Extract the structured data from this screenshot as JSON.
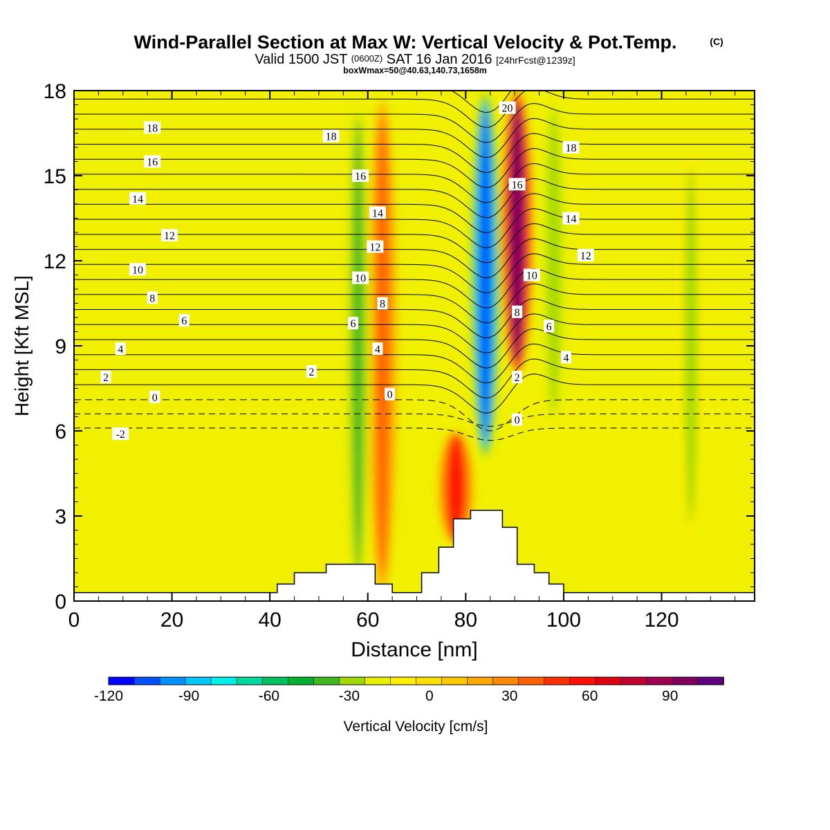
{
  "chart_data": {
    "type": "heatmap",
    "title": "Wind-Parallel Section at Max W: Vertical Velocity & Pot.Temp.",
    "title_mark": "(C)",
    "subtitle": {
      "part1": "Valid 1500 JST",
      "part2": "(0600Z)",
      "part3": "SAT 16 Jan 2016",
      "part4": "[24hrFcst@1239z]"
    },
    "subsubtitle": "boxWmax=50@40.63,140.73,1658m",
    "xlabel": "Distance [nm]",
    "ylabel": "Height [Kft MSL]",
    "xlim": [
      0,
      139
    ],
    "ylim": [
      0,
      18
    ],
    "x_ticks": [
      0,
      20,
      40,
      60,
      80,
      100,
      120
    ],
    "y_ticks": [
      0,
      3,
      6,
      9,
      12,
      15,
      18
    ],
    "colorbar": {
      "label": "Vertical Velocity [cm/s]",
      "min": -120,
      "max": 110,
      "step": 10,
      "tick_labels": [
        -120,
        -90,
        -60,
        -30,
        0,
        30,
        60,
        90
      ],
      "colors": [
        "#0000ff",
        "#0050ff",
        "#0090ff",
        "#00c8ff",
        "#00f0e8",
        "#00d8a0",
        "#00c060",
        "#00b030",
        "#40b820",
        "#a0d800",
        "#e8f000",
        "#fff000",
        "#ffe000",
        "#ffc800",
        "#ffa800",
        "#ff8800",
        "#ff6000",
        "#ff3000",
        "#ff1000",
        "#e00010",
        "#c00030",
        "#a00050",
        "#800060",
        "#600080"
      ]
    },
    "vertical_velocity_field": [
      {
        "name": "downdraft core",
        "x": 84,
        "y_range": [
          5,
          18
        ],
        "value": -110
      },
      {
        "name": "updraft core",
        "x": 90.5,
        "y_range": [
          8,
          18
        ],
        "value": 100
      },
      {
        "name": "lee-side updraft",
        "x": 78,
        "y_range": [
          2,
          6
        ],
        "value": 60
      },
      {
        "name": "upstream updraft band",
        "x": 63,
        "y_range": [
          0,
          18
        ],
        "value": 35
      },
      {
        "name": "upstream downdraft band",
        "x": 58,
        "y_range": [
          0,
          18
        ],
        "value": -35
      },
      {
        "name": "downdraft band east",
        "x": 98,
        "y_range": [
          6,
          18
        ],
        "value": -30
      },
      {
        "name": "weak downdraft",
        "x": 126,
        "y_range": [
          2,
          16
        ],
        "value": -25
      }
    ],
    "potential_temperature_contours": {
      "interval": 1,
      "labels_left": [
        18,
        16,
        14,
        12,
        10,
        8,
        6,
        4,
        2,
        0,
        -2
      ],
      "labels_mid": [
        18,
        16,
        14,
        12,
        10,
        8,
        6,
        4,
        2,
        0
      ],
      "labels_right": [
        20,
        18,
        16,
        14,
        12,
        10,
        8,
        6,
        4,
        2,
        0
      ],
      "label_positions": [
        {
          "text": "18",
          "x": 16,
          "y": 16.7
        },
        {
          "text": "16",
          "x": 16,
          "y": 15.5
        },
        {
          "text": "14",
          "x": 13,
          "y": 14.2
        },
        {
          "text": "12",
          "x": 19.5,
          "y": 12.9
        },
        {
          "text": "10",
          "x": 13,
          "y": 11.7
        },
        {
          "text": "8",
          "x": 16,
          "y": 10.7
        },
        {
          "text": "6",
          "x": 22.5,
          "y": 9.9
        },
        {
          "text": "4",
          "x": 9.5,
          "y": 8.9
        },
        {
          "text": "2",
          "x": 6.5,
          "y": 7.9
        },
        {
          "text": "0",
          "x": 16.5,
          "y": 7.2
        },
        {
          "text": "-2",
          "x": 9.5,
          "y": 5.9
        },
        {
          "text": "18",
          "x": 52.5,
          "y": 16.4
        },
        {
          "text": "16",
          "x": 58.5,
          "y": 15.0
        },
        {
          "text": "14",
          "x": 62,
          "y": 13.7
        },
        {
          "text": "12",
          "x": 61.5,
          "y": 12.5
        },
        {
          "text": "10",
          "x": 58.5,
          "y": 11.4
        },
        {
          "text": "8",
          "x": 63,
          "y": 10.5
        },
        {
          "text": "6",
          "x": 57,
          "y": 9.8
        },
        {
          "text": "4",
          "x": 62,
          "y": 8.9
        },
        {
          "text": "2",
          "x": 48.5,
          "y": 8.1
        },
        {
          "text": "0",
          "x": 64.5,
          "y": 7.3
        },
        {
          "text": "20",
          "x": 88.5,
          "y": 17.4
        },
        {
          "text": "18",
          "x": 101.5,
          "y": 16.0
        },
        {
          "text": "16",
          "x": 90.5,
          "y": 14.7
        },
        {
          "text": "14",
          "x": 101.5,
          "y": 13.5
        },
        {
          "text": "12",
          "x": 104.5,
          "y": 12.2
        },
        {
          "text": "10",
          "x": 93.5,
          "y": 11.5
        },
        {
          "text": "8",
          "x": 90.5,
          "y": 10.2
        },
        {
          "text": "6",
          "x": 97,
          "y": 9.7
        },
        {
          "text": "4",
          "x": 100.5,
          "y": 8.6
        },
        {
          "text": "2",
          "x": 90.5,
          "y": 7.9
        },
        {
          "text": "0",
          "x": 90.5,
          "y": 6.4
        }
      ]
    },
    "terrain": [
      [
        41.5,
        0.3
      ],
      [
        41.5,
        0.6
      ],
      [
        45,
        0.6
      ],
      [
        45,
        1.0
      ],
      [
        51.5,
        1.0
      ],
      [
        51.5,
        1.3
      ],
      [
        61.5,
        1.3
      ],
      [
        61.5,
        0.6
      ],
      [
        65,
        0.6
      ],
      [
        65,
        0.3
      ],
      [
        71,
        0.3
      ],
      [
        71,
        1.0
      ],
      [
        74.5,
        1.0
      ],
      [
        74.5,
        1.9
      ],
      [
        77.5,
        1.9
      ],
      [
        77.5,
        2.9
      ],
      [
        81,
        2.9
      ],
      [
        81,
        3.2
      ],
      [
        87.5,
        3.2
      ],
      [
        87.5,
        2.6
      ],
      [
        90.5,
        2.6
      ],
      [
        90.5,
        1.3
      ],
      [
        94,
        1.3
      ],
      [
        94,
        1.0
      ],
      [
        97,
        1.0
      ],
      [
        97,
        0.6
      ],
      [
        100,
        0.6
      ],
      [
        100,
        0.3
      ]
    ]
  }
}
